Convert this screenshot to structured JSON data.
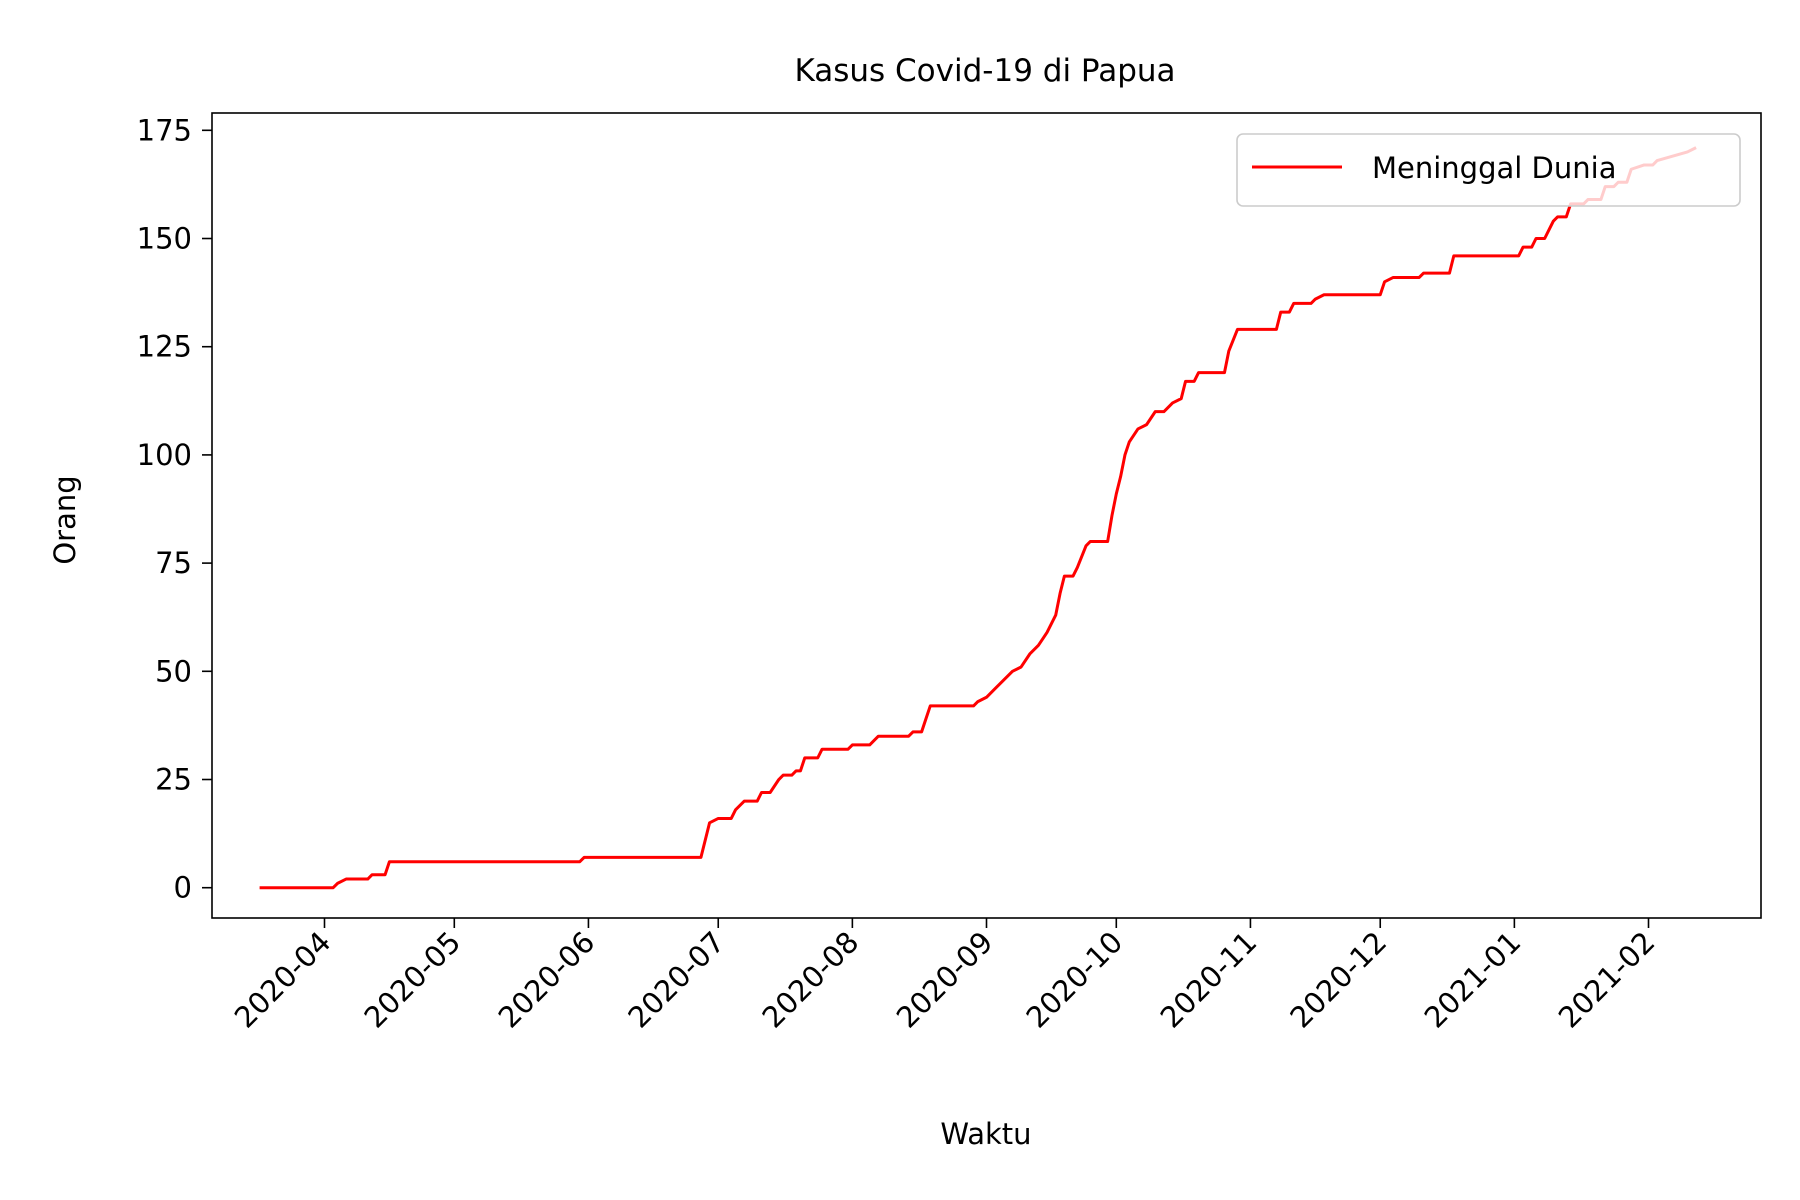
{
  "chart_data": {
    "type": "line",
    "title": "Kasus Covid-19 di Papua",
    "xlabel": "Waktu",
    "ylabel": "Orang",
    "xlim": [
      "2020-03-06",
      "2021-02-27"
    ],
    "ylim": [
      -7,
      179
    ],
    "xticks": [
      "2020-04",
      "2020-05",
      "2020-06",
      "2020-07",
      "2020-08",
      "2020-09",
      "2020-10",
      "2020-11",
      "2020-12",
      "2021-01",
      "2021-02"
    ],
    "xtick_dates": [
      "2020-04-01",
      "2020-05-01",
      "2020-06-01",
      "2020-07-01",
      "2020-08-01",
      "2020-09-01",
      "2020-10-01",
      "2020-11-01",
      "2020-12-01",
      "2021-01-01",
      "2021-02-01"
    ],
    "yticks": [
      "0",
      "25",
      "50",
      "75",
      "100",
      "125",
      "150",
      "175"
    ],
    "ytick_values": [
      0,
      25,
      50,
      75,
      100,
      125,
      150,
      175
    ],
    "grid": false,
    "legend_position": "top-right",
    "series": [
      {
        "name": "Meninggal Dunia",
        "color": "#ff0000",
        "points": [
          [
            "2020-03-17",
            0
          ],
          [
            "2020-04-03",
            0
          ],
          [
            "2020-04-04",
            1
          ],
          [
            "2020-04-06",
            2
          ],
          [
            "2020-04-11",
            2
          ],
          [
            "2020-04-12",
            3
          ],
          [
            "2020-04-15",
            3
          ],
          [
            "2020-04-16",
            6
          ],
          [
            "2020-05-30",
            6
          ],
          [
            "2020-05-31",
            7
          ],
          [
            "2020-06-27",
            7
          ],
          [
            "2020-06-29",
            15
          ],
          [
            "2020-07-01",
            16
          ],
          [
            "2020-07-04",
            16
          ],
          [
            "2020-07-05",
            18
          ],
          [
            "2020-07-07",
            20
          ],
          [
            "2020-07-10",
            20
          ],
          [
            "2020-07-11",
            22
          ],
          [
            "2020-07-13",
            22
          ],
          [
            "2020-07-15",
            25
          ],
          [
            "2020-07-16",
            26
          ],
          [
            "2020-07-18",
            26
          ],
          [
            "2020-07-19",
            27
          ],
          [
            "2020-07-20",
            27
          ],
          [
            "2020-07-21",
            30
          ],
          [
            "2020-07-24",
            30
          ],
          [
            "2020-07-25",
            32
          ],
          [
            "2020-07-31",
            32
          ],
          [
            "2020-08-01",
            33
          ],
          [
            "2020-08-05",
            33
          ],
          [
            "2020-08-06",
            34
          ],
          [
            "2020-08-07",
            35
          ],
          [
            "2020-08-14",
            35
          ],
          [
            "2020-08-15",
            36
          ],
          [
            "2020-08-17",
            36
          ],
          [
            "2020-08-18",
            39
          ],
          [
            "2020-08-19",
            42
          ],
          [
            "2020-08-29",
            42
          ],
          [
            "2020-08-30",
            43
          ],
          [
            "2020-09-01",
            44
          ],
          [
            "2020-09-03",
            46
          ],
          [
            "2020-09-05",
            48
          ],
          [
            "2020-09-07",
            50
          ],
          [
            "2020-09-09",
            51
          ],
          [
            "2020-09-11",
            54
          ],
          [
            "2020-09-13",
            56
          ],
          [
            "2020-09-15",
            59
          ],
          [
            "2020-09-17",
            63
          ],
          [
            "2020-09-18",
            68
          ],
          [
            "2020-09-19",
            72
          ],
          [
            "2020-09-21",
            72
          ],
          [
            "2020-09-22",
            74
          ],
          [
            "2020-09-24",
            79
          ],
          [
            "2020-09-25",
            80
          ],
          [
            "2020-09-29",
            80
          ],
          [
            "2020-09-30",
            86
          ],
          [
            "2020-10-01",
            91
          ],
          [
            "2020-10-02",
            95
          ],
          [
            "2020-10-03",
            100
          ],
          [
            "2020-10-04",
            103
          ],
          [
            "2020-10-06",
            106
          ],
          [
            "2020-10-08",
            107
          ],
          [
            "2020-10-10",
            110
          ],
          [
            "2020-10-12",
            110
          ],
          [
            "2020-10-14",
            112
          ],
          [
            "2020-10-16",
            113
          ],
          [
            "2020-10-17",
            117
          ],
          [
            "2020-10-19",
            117
          ],
          [
            "2020-10-20",
            119
          ],
          [
            "2020-10-26",
            119
          ],
          [
            "2020-10-27",
            124
          ],
          [
            "2020-10-29",
            129
          ],
          [
            "2020-11-07",
            129
          ],
          [
            "2020-11-08",
            133
          ],
          [
            "2020-11-10",
            133
          ],
          [
            "2020-11-11",
            135
          ],
          [
            "2020-11-15",
            135
          ],
          [
            "2020-11-16",
            136
          ],
          [
            "2020-11-18",
            137
          ],
          [
            "2020-12-01",
            137
          ],
          [
            "2020-12-02",
            140
          ],
          [
            "2020-12-04",
            141
          ],
          [
            "2020-12-10",
            141
          ],
          [
            "2020-12-11",
            142
          ],
          [
            "2020-12-17",
            142
          ],
          [
            "2020-12-18",
            146
          ],
          [
            "2021-01-02",
            146
          ],
          [
            "2021-01-03",
            148
          ],
          [
            "2021-01-05",
            148
          ],
          [
            "2021-01-06",
            150
          ],
          [
            "2021-01-08",
            150
          ],
          [
            "2021-01-09",
            152
          ],
          [
            "2021-01-10",
            154
          ],
          [
            "2021-01-11",
            155
          ],
          [
            "2021-01-13",
            155
          ],
          [
            "2021-01-14",
            158
          ],
          [
            "2021-01-17",
            158
          ],
          [
            "2021-01-18",
            159
          ],
          [
            "2021-01-21",
            159
          ],
          [
            "2021-01-22",
            162
          ],
          [
            "2021-01-24",
            162
          ],
          [
            "2021-01-25",
            163
          ],
          [
            "2021-01-27",
            163
          ],
          [
            "2021-01-28",
            166
          ],
          [
            "2021-01-31",
            167
          ],
          [
            "2021-02-02",
            167
          ],
          [
            "2021-02-03",
            168
          ],
          [
            "2021-02-10",
            170
          ],
          [
            "2021-02-12",
            171
          ]
        ]
      }
    ]
  }
}
